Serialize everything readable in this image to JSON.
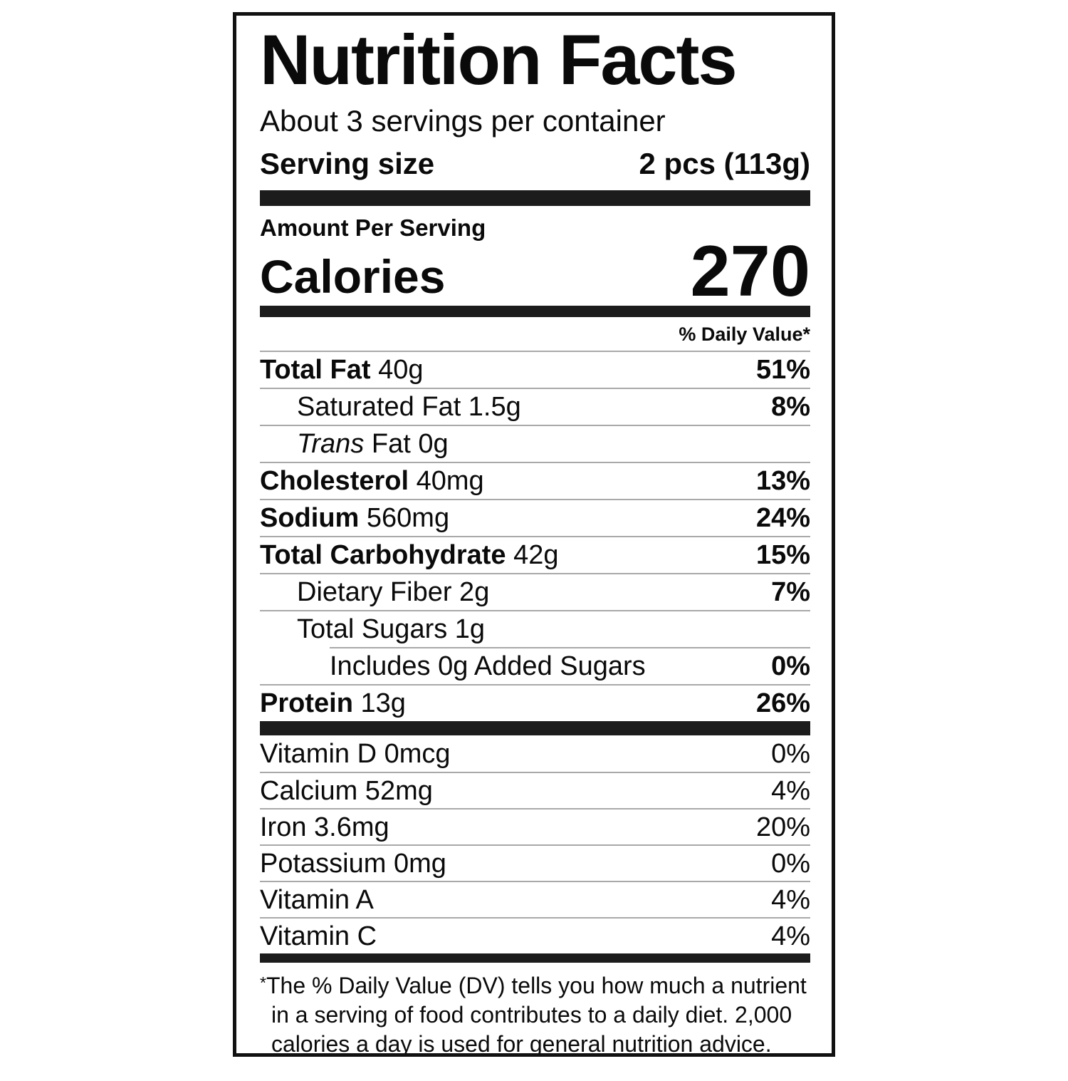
{
  "label": {
    "title": "Nutrition Facts",
    "servings_per_container": "About 3 servings per container",
    "serving_size": {
      "label": "Serving size",
      "value": "2 pcs (113g)"
    },
    "amount_per_serving": "Amount Per Serving",
    "calories": {
      "label": "Calories",
      "value": "270"
    },
    "daily_value_header": "% Daily Value*",
    "nutrients": [
      {
        "parts": [
          {
            "text": "Total Fat",
            "bold": true
          },
          {
            "text": " 40g"
          }
        ],
        "dv": "51%",
        "dv_bold": true,
        "indent": 0
      },
      {
        "parts": [
          {
            "text": "Saturated Fat 1.5g"
          }
        ],
        "dv": "8%",
        "dv_bold": true,
        "indent": 1
      },
      {
        "parts": [
          {
            "text": "Trans",
            "italic": true
          },
          {
            "text": " Fat 0g"
          }
        ],
        "dv": "",
        "indent": 1
      },
      {
        "parts": [
          {
            "text": "Cholesterol",
            "bold": true
          },
          {
            "text": " 40mg"
          }
        ],
        "dv": "13%",
        "dv_bold": true,
        "indent": 0
      },
      {
        "parts": [
          {
            "text": "Sodium",
            "bold": true
          },
          {
            "text": " 560mg"
          }
        ],
        "dv": "24%",
        "dv_bold": true,
        "indent": 0
      },
      {
        "parts": [
          {
            "text": "Total Carbohydrate",
            "bold": true
          },
          {
            "text": " 42g"
          }
        ],
        "dv": "15%",
        "dv_bold": true,
        "indent": 0
      },
      {
        "parts": [
          {
            "text": "Dietary Fiber 2g"
          }
        ],
        "dv": "7%",
        "dv_bold": true,
        "indent": 1
      },
      {
        "parts": [
          {
            "text": "Total Sugars 1g"
          }
        ],
        "dv": "",
        "indent": 1
      },
      {
        "parts": [
          {
            "text": "Includes 0g Added Sugars"
          }
        ],
        "dv": "0%",
        "dv_bold": true,
        "indent": 2,
        "divider_indent": true
      },
      {
        "parts": [
          {
            "text": "Protein",
            "bold": true
          },
          {
            "text": " 13g"
          }
        ],
        "dv": "26%",
        "dv_bold": true,
        "indent": 0
      }
    ],
    "vitamins": [
      {
        "parts": [
          {
            "text": "Vitamin D 0mcg"
          }
        ],
        "dv": "0%"
      },
      {
        "parts": [
          {
            "text": "Calcium 52mg"
          }
        ],
        "dv": "4%"
      },
      {
        "parts": [
          {
            "text": "Iron 3.6mg"
          }
        ],
        "dv": "20%"
      },
      {
        "parts": [
          {
            "text": "Potassium 0mg"
          }
        ],
        "dv": "0%"
      },
      {
        "parts": [
          {
            "text": "Vitamin A"
          }
        ],
        "dv": "4%"
      },
      {
        "parts": [
          {
            "text": "Vitamin C"
          }
        ],
        "dv": "4%"
      }
    ],
    "footnote": {
      "marker": "*",
      "text": "The % Daily Value (DV) tells you how much a nutrient in a serving of food contributes to a daily diet. 2,000 calories a day is used for general nutrition advice."
    },
    "colors": {
      "text": "#0a0a0a",
      "bar": "#1c1c1c",
      "divider": "#a9a9a9",
      "border": "#111111"
    }
  }
}
